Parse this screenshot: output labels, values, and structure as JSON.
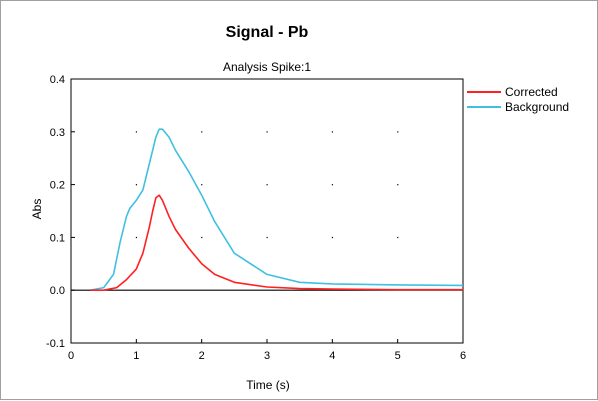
{
  "chart_data": {
    "type": "line",
    "title": "Signal - Pb",
    "subtitle": "Analysis Spike:1",
    "xlabel": "Time (s)",
    "ylabel": "Abs",
    "xlim": [
      0,
      6
    ],
    "ylim": [
      -0.1,
      0.4
    ],
    "xticks": [
      0,
      1,
      2,
      3,
      4,
      5,
      6
    ],
    "yticks": [
      -0.1,
      0.0,
      0.1,
      0.2,
      0.3,
      0.4
    ],
    "xtick_labels": [
      "0",
      "1",
      "2",
      "3",
      "4",
      "5",
      "6"
    ],
    "ytick_labels": [
      "-0.1",
      "0.0",
      "0.1",
      "0.2",
      "0.3",
      "0.4"
    ],
    "grid": "dots",
    "legend_position": "right",
    "series": [
      {
        "name": "Corrected",
        "color": "#ff2020",
        "x": [
          0.3,
          0.5,
          0.7,
          0.85,
          1.0,
          1.1,
          1.2,
          1.25,
          1.3,
          1.35,
          1.4,
          1.5,
          1.6,
          1.8,
          2.0,
          2.2,
          2.5,
          3.0,
          3.5,
          4.0,
          5.0,
          6.0
        ],
        "y": [
          0.0,
          0.0,
          0.005,
          0.02,
          0.04,
          0.07,
          0.12,
          0.15,
          0.175,
          0.18,
          0.17,
          0.14,
          0.115,
          0.08,
          0.05,
          0.03,
          0.015,
          0.006,
          0.003,
          0.002,
          0.001,
          0.001
        ]
      },
      {
        "name": "Background",
        "color": "#40c0e0",
        "x": [
          0.3,
          0.5,
          0.65,
          0.75,
          0.85,
          0.9,
          1.0,
          1.1,
          1.2,
          1.3,
          1.35,
          1.4,
          1.5,
          1.6,
          1.8,
          2.0,
          2.2,
          2.5,
          3.0,
          3.5,
          4.0,
          5.0,
          6.0
        ],
        "y": [
          0.0,
          0.005,
          0.03,
          0.09,
          0.14,
          0.155,
          0.17,
          0.19,
          0.24,
          0.29,
          0.305,
          0.305,
          0.29,
          0.265,
          0.225,
          0.18,
          0.13,
          0.07,
          0.03,
          0.015,
          0.012,
          0.01,
          0.009
        ]
      }
    ]
  }
}
